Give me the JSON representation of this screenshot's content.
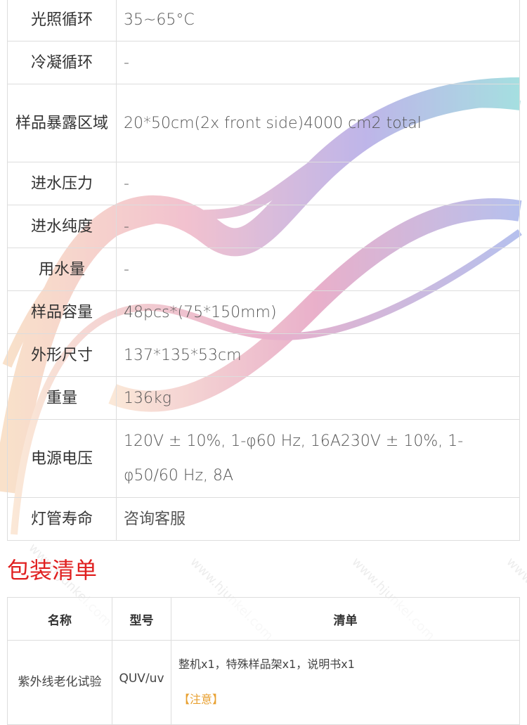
{
  "specs": [
    {
      "label": "光照循环",
      "value": "35~65°C"
    },
    {
      "label": "冷凝循环",
      "value": "-"
    },
    {
      "label": "样品暴露区域",
      "value": "20*50cm(2x front side)4000 cm2 total"
    },
    {
      "label": "进水压力",
      "value": "-"
    },
    {
      "label": "进水纯度",
      "value": "-"
    },
    {
      "label": "用水量",
      "value": "-"
    },
    {
      "label": "样品容量",
      "value": "48pcs*(75*150mm)"
    },
    {
      "label": "外形尺寸",
      "value": "137*135*53cm"
    },
    {
      "label": "重量",
      "value": "136kg"
    },
    {
      "label": "电源电压",
      "value": "120V ± 10%, 1-φ60 Hz, 16A230V ± 10%, 1-φ50/60 Hz, 8A"
    },
    {
      "label": "灯管寿命",
      "value": "咨询客服"
    }
  ],
  "packing": {
    "title": "包装清单",
    "headers": [
      "名称",
      "型号",
      "清单"
    ],
    "row": {
      "name": "紫外线老化试验",
      "model": "QUV/uv",
      "list": "整机x1，特殊样品架x1，说明书x1",
      "note": "【注意】"
    }
  },
  "watermark": "www.hjunkel.com",
  "colors": {
    "title": "#e02020",
    "border": "#dddddd"
  }
}
